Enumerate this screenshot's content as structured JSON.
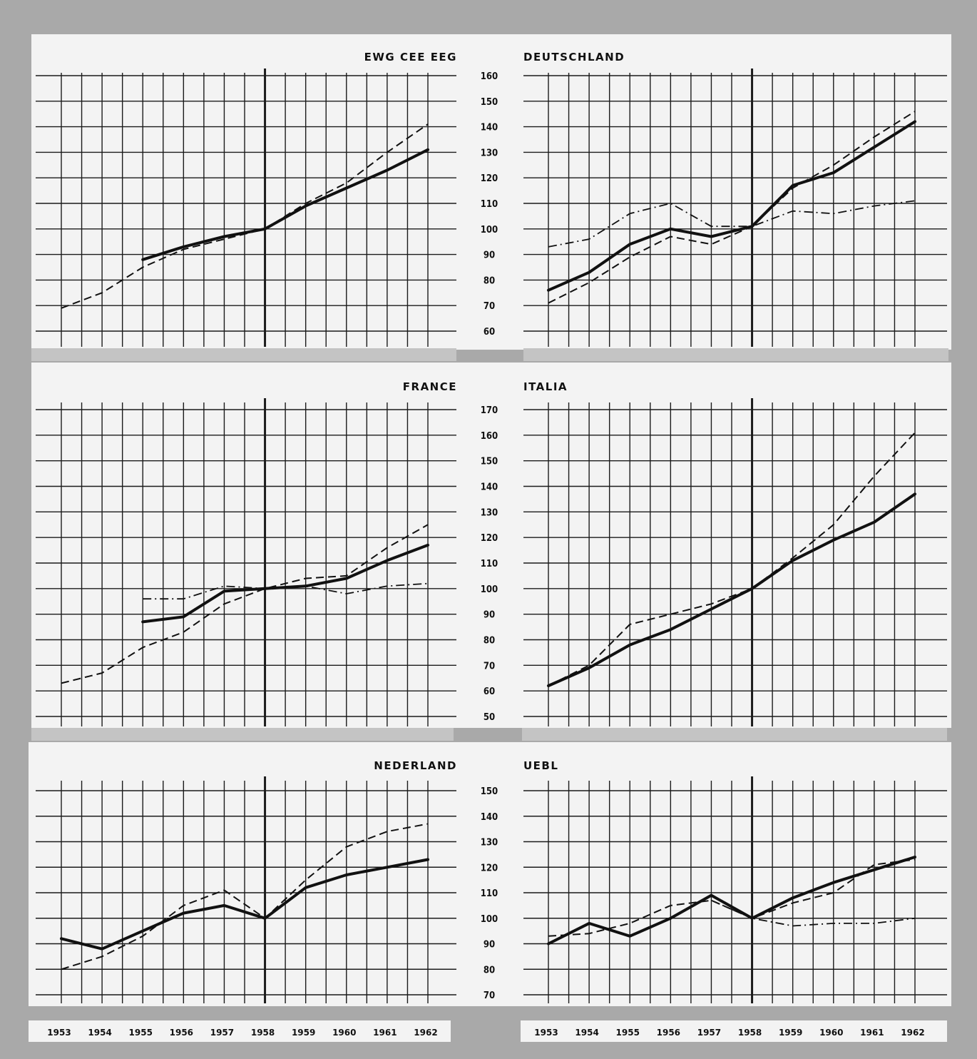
{
  "years": [
    "1953",
    "1954",
    "1955",
    "1956",
    "1957",
    "1958",
    "1959",
    "1960",
    "1961",
    "1962"
  ],
  "y_ticks_rows": [
    [
      "160",
      "150",
      "140",
      "130",
      "120",
      "110",
      "100",
      "90",
      "80",
      "70",
      "60"
    ],
    [
      "170",
      "160",
      "150",
      "140",
      "130",
      "120",
      "110",
      "100",
      "90",
      "80",
      "70",
      "60",
      "50"
    ],
    [
      "150",
      "140",
      "130",
      "120",
      "110",
      "100",
      "90",
      "80",
      "70"
    ]
  ],
  "chart_data": [
    {
      "type": "line",
      "title": "EWG CEE EEG",
      "x": [
        1953,
        1954,
        1955,
        1956,
        1957,
        1958,
        1959,
        1960,
        1961,
        1962
      ],
      "ylim": [
        60,
        160
      ],
      "base_year": 1958,
      "grid": true,
      "series": [
        {
          "style": "solid",
          "values": [
            null,
            null,
            88,
            93,
            97,
            100,
            109,
            116,
            123,
            131
          ]
        },
        {
          "style": "dashed",
          "values": [
            69,
            75,
            85,
            92,
            96,
            100,
            110,
            118,
            130,
            141
          ]
        }
      ]
    },
    {
      "type": "line",
      "title": "DEUTSCHLAND",
      "x": [
        1953,
        1954,
        1955,
        1956,
        1957,
        1958,
        1959,
        1960,
        1961,
        1962
      ],
      "ylim": [
        60,
        160
      ],
      "base_year": 1958,
      "grid": true,
      "series": [
        {
          "style": "solid",
          "values": [
            76,
            83,
            94,
            100,
            97,
            101,
            117,
            122,
            132,
            142
          ]
        },
        {
          "style": "dashed",
          "values": [
            71,
            79,
            89,
            97,
            94,
            101,
            116,
            125,
            136,
            146
          ]
        },
        {
          "style": "dashdot",
          "values": [
            93,
            96,
            106,
            110,
            101,
            101,
            107,
            106,
            109,
            111
          ]
        }
      ]
    },
    {
      "type": "line",
      "title": "FRANCE",
      "x": [
        1953,
        1954,
        1955,
        1956,
        1957,
        1958,
        1959,
        1960,
        1961,
        1962
      ],
      "ylim": [
        50,
        170
      ],
      "base_year": 1958,
      "grid": true,
      "series": [
        {
          "style": "solid",
          "values": [
            null,
            null,
            87,
            89,
            99,
            100,
            101,
            104,
            111,
            117
          ]
        },
        {
          "style": "dashed",
          "values": [
            63,
            67,
            77,
            83,
            94,
            100,
            104,
            105,
            116,
            125
          ]
        },
        {
          "style": "dashdot",
          "values": [
            null,
            null,
            96,
            96,
            101,
            100,
            101,
            98,
            101,
            102
          ]
        }
      ]
    },
    {
      "type": "line",
      "title": "ITALIA",
      "x": [
        1953,
        1954,
        1955,
        1956,
        1957,
        1958,
        1959,
        1960,
        1961,
        1962
      ],
      "ylim": [
        50,
        170
      ],
      "base_year": 1958,
      "grid": true,
      "series": [
        {
          "style": "solid",
          "values": [
            62,
            69,
            78,
            84,
            92,
            100,
            111,
            119,
            126,
            137
          ]
        },
        {
          "style": "dashed",
          "values": [
            62,
            70,
            86,
            90,
            94,
            100,
            112,
            125,
            144,
            161
          ]
        }
      ]
    },
    {
      "type": "line",
      "title": "NEDERLAND",
      "x": [
        1953,
        1954,
        1955,
        1956,
        1957,
        1958,
        1959,
        1960,
        1961,
        1962
      ],
      "ylim": [
        70,
        150
      ],
      "base_year": 1958,
      "grid": true,
      "series": [
        {
          "style": "solid",
          "values": [
            92,
            88,
            95,
            102,
            105,
            100,
            112,
            117,
            120,
            123
          ]
        },
        {
          "style": "dashed",
          "values": [
            80,
            85,
            93,
            105,
            111,
            100,
            115,
            128,
            134,
            137
          ]
        }
      ]
    },
    {
      "type": "line",
      "title": "UEBL",
      "x": [
        1953,
        1954,
        1955,
        1956,
        1957,
        1958,
        1959,
        1960,
        1961,
        1962
      ],
      "ylim": [
        70,
        150
      ],
      "base_year": 1958,
      "grid": true,
      "series": [
        {
          "style": "solid",
          "values": [
            90,
            98,
            93,
            100,
            109,
            100,
            108,
            114,
            119,
            124
          ]
        },
        {
          "style": "dashed",
          "values": [
            93,
            94,
            98,
            105,
            107,
            100,
            106,
            110,
            121,
            123
          ]
        },
        {
          "style": "dashdot",
          "values": [
            93,
            null,
            null,
            null,
            107,
            100,
            97,
            98,
            98,
            100
          ]
        }
      ]
    }
  ]
}
